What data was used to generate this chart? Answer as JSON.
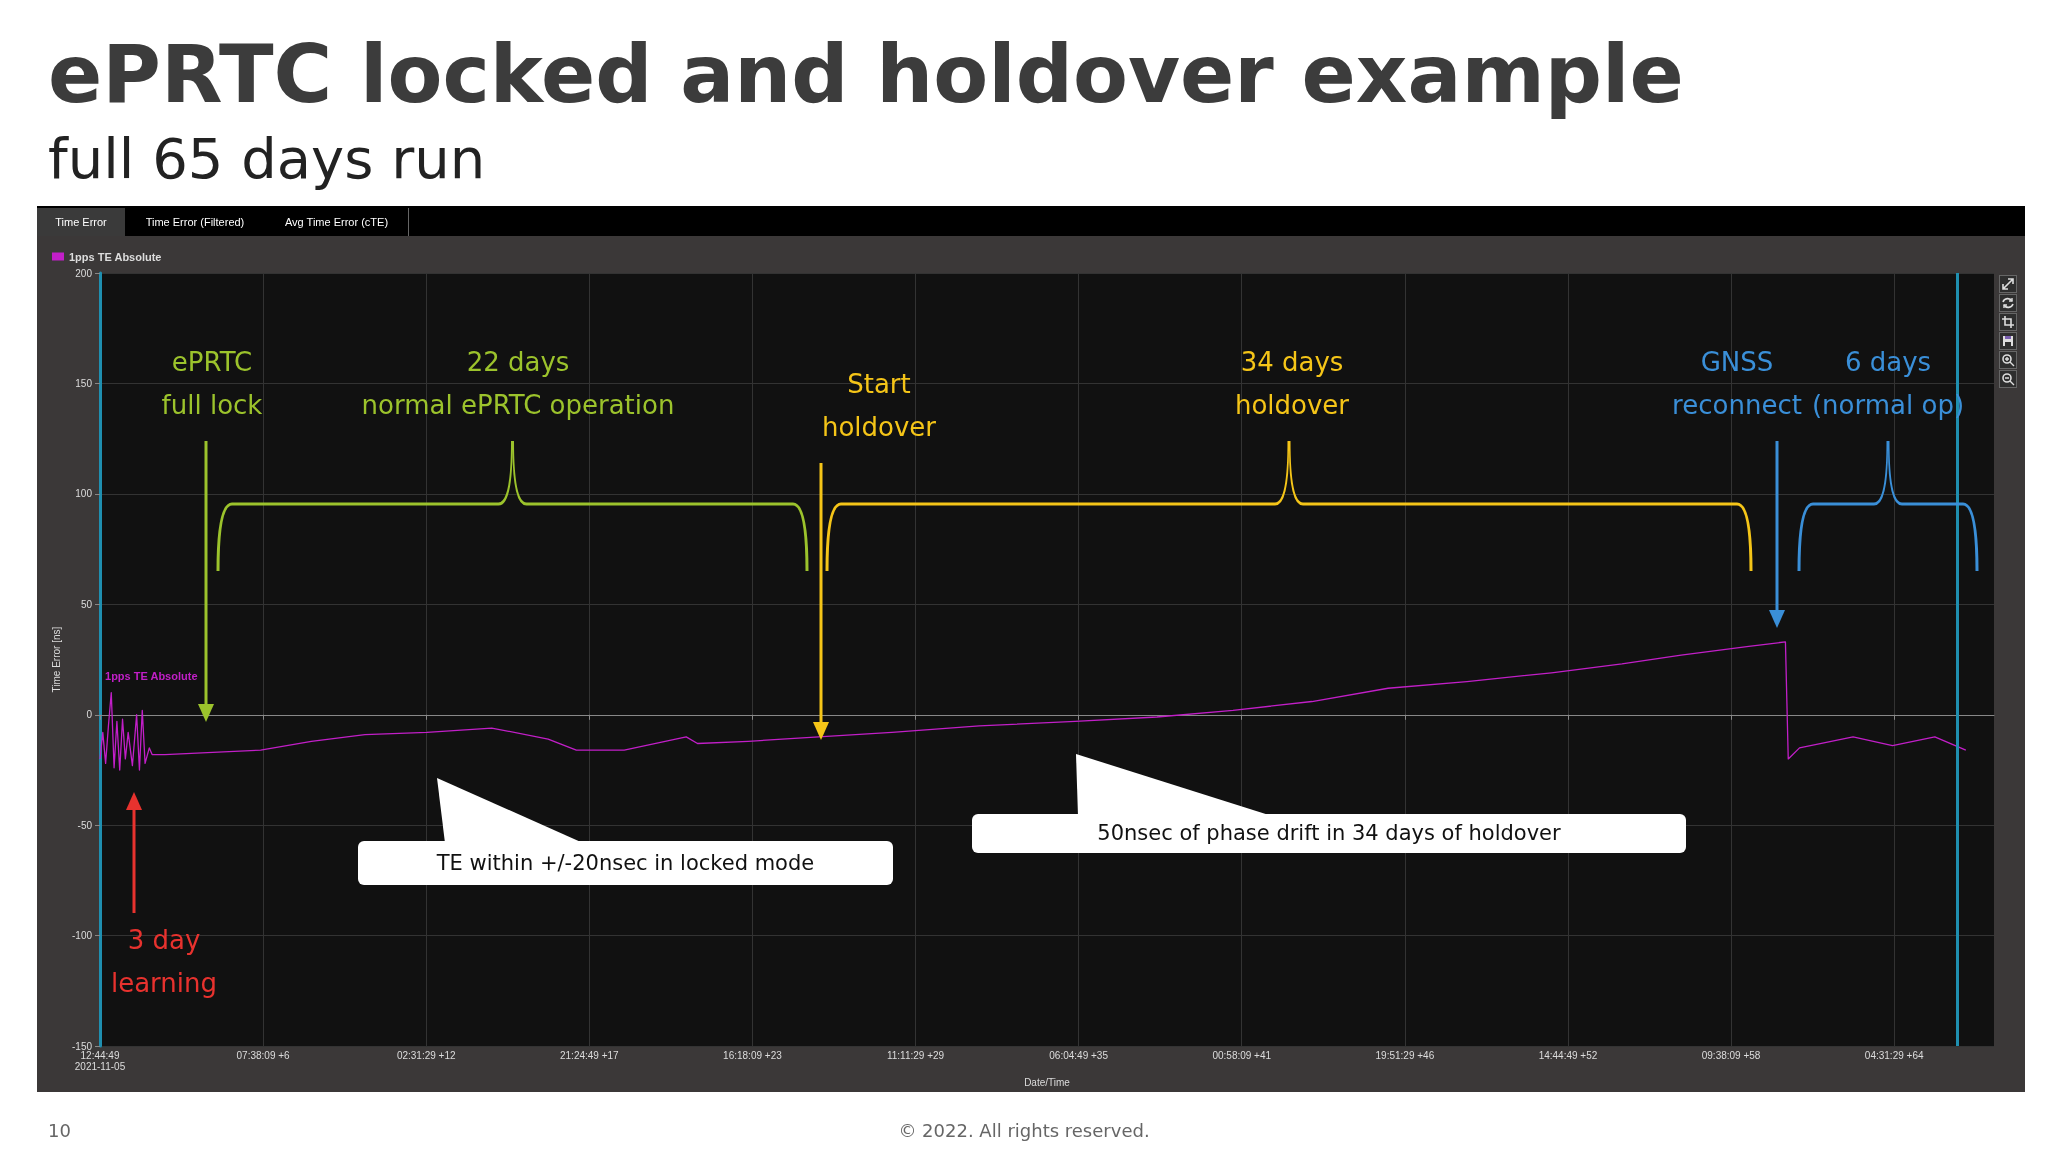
{
  "chart_data": {
    "type": "line",
    "title": "ePRTC locked and holdover example",
    "subtitle": "full 65 days run",
    "xlabel": "Date/Time",
    "ylabel": "Time Error [ns]",
    "x": [
      "2021-11-05T12:44:49",
      "2021-11-05T15:08",
      "2021-11-05T17:32",
      "2021-11-05T19:56",
      "2021-11-05T22:20",
      "2021-11-06T00:44",
      "2021-11-06T03:08",
      "2021-11-06T05:32",
      "2021-11-06T07:56",
      "2021-11-06T10:20",
      "2021-11-06T12:44",
      "2021-11-06T16:20",
      "2021-11-06T19:56",
      "2021-11-06T22:20",
      "2021-11-07T00:44",
      "2021-11-07T03:08",
      "2021-11-07T06:44",
      "2021-11-07T09:08",
      "2021-11-07T19:56",
      "2021-11-09T12:44",
      "2021-11-11T05:32",
      "2021-11-13T00:44",
      "2021-11-14T22:20",
      "2021-11-17T03:08",
      "2021-11-19T10:20",
      "2021-11-21T10:20",
      "2021-11-22T10:20",
      "2021-11-24T03:08",
      "2021-11-26T07:56",
      "2021-11-26T17:32",
      "2021-11-28T12:44",
      "2021-12-01T00:44",
      "2021-12-03T15:08",
      "2021-12-06T17:32",
      "2021-12-10T03:08",
      "2021-12-13T00:44",
      "2021-12-15T17:32",
      "2021-12-18T12:44",
      "2021-12-21T05:32",
      "2021-12-24T00:44",
      "2021-12-27T00:44",
      "2021-12-29T12:44",
      "2021-12-31T15:08",
      "2022-01-03T00:44",
      "2022-01-04T07:56",
      "2022-01-04T10:20",
      "2022-01-04T19:56",
      "2022-01-06T17:32",
      "2022-01-08T03:08",
      "2022-01-09T15:08",
      "2022-01-10T17:32"
    ],
    "series": [
      {
        "name": "1pps TE Absolute",
        "color": "#c21fc8",
        "values": [
          -20,
          -8,
          -22,
          -5,
          10,
          -24,
          -3,
          -25,
          -2,
          -20,
          -8,
          -23,
          0,
          -25,
          2,
          -22,
          -15,
          -18,
          -18,
          -17,
          -16,
          -12,
          -9,
          -8,
          -6,
          -11,
          -16,
          -16,
          -10,
          -13,
          -12,
          -10,
          -8,
          -5,
          -3,
          -1,
          2,
          6,
          12,
          15,
          19,
          23,
          27,
          31,
          33,
          -20,
          -15,
          -10,
          -14,
          -10,
          -16
        ]
      }
    ],
    "xlim": [
      "2021-11-05T12:44:49",
      "2022-01-11T17:32"
    ],
    "xticks": [
      {
        "value": "2021-11-05T12:44:49",
        "label": "12:44:49\n2021-11-05"
      },
      {
        "value": "2021-11-11T07:38:09",
        "label": "07:38:09 +6"
      },
      {
        "value": "2021-11-17T02:31:29",
        "label": "02:31:29 +12"
      },
      {
        "value": "2021-11-22T21:24:49",
        "label": "21:24:49 +17"
      },
      {
        "value": "2021-11-28T16:18:09",
        "label": "16:18:09 +23"
      },
      {
        "value": "2021-12-04T11:11:29",
        "label": "11:11:29 +29"
      },
      {
        "value": "2021-12-10T06:04:49",
        "label": "06:04:49 +35"
      },
      {
        "value": "2021-12-16T00:58:09",
        "label": "00:58:09 +41"
      },
      {
        "value": "2021-12-21T19:51:29",
        "label": "19:51:29 +46"
      },
      {
        "value": "2021-12-27T14:44:49",
        "label": "14:44:49 +52"
      },
      {
        "value": "2022-01-02T09:38:09",
        "label": "09:38:09 +58"
      },
      {
        "value": "2022-01-08T04:31:29",
        "label": "04:31:29 +64"
      }
    ],
    "ylim": [
      -150,
      200
    ],
    "yticks": [
      -150,
      -100,
      -50,
      0,
      50,
      100,
      150,
      200
    ],
    "grid": true,
    "legend": "top left",
    "marker": "none",
    "line_style": "solid",
    "ref_lines": [
      {
        "axis": "x",
        "value": "2022-01-10T10:20",
        "color": "#1f8fb0"
      }
    ],
    "annotations": [
      "ePRTC\nfull lock",
      "22 days\nnormal ePRTC operation",
      "Start\nholdover",
      "34 days\nholdover",
      "GNSS\nreconnect",
      "6 days\n(normal op)",
      "3 day\nlearning",
      "TE within +/-20nsec in locked mode",
      "50nsec of phase drift in 34 days of holdover",
      "Time Error",
      "Time Error (Filtered)",
      "Avg Time Error (cTE)",
      "10",
      "© 2022. All rights reserved."
    ]
  }
}
